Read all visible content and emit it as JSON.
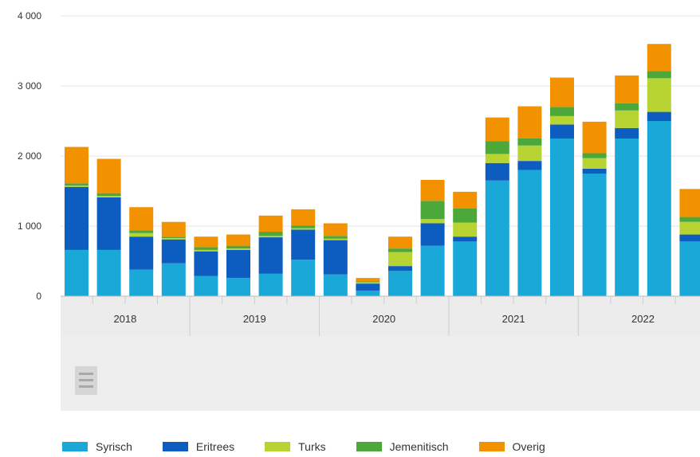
{
  "chart_data": {
    "type": "bar",
    "stacked": true,
    "quarters_per_year": 4,
    "years": [
      "2018",
      "2019",
      "2020",
      "2021",
      "2022"
    ],
    "y_ticks": [
      "0",
      "1 000",
      "2 000",
      "3 000",
      "4 000"
    ],
    "ylim": [
      0,
      4000
    ],
    "grid": true,
    "legend_position": "bottom",
    "series": [
      {
        "name": "Syrisch",
        "color": "#1aa8d8",
        "values": [
          660,
          660,
          380,
          470,
          290,
          260,
          320,
          520,
          310,
          80,
          360,
          720,
          780,
          1650,
          1800,
          2250,
          1750,
          2250,
          2500,
          780
        ]
      },
      {
        "name": "Eritrees",
        "color": "#0d5cbf",
        "values": [
          900,
          750,
          470,
          340,
          350,
          400,
          520,
          430,
          490,
          100,
          70,
          320,
          70,
          250,
          130,
          200,
          70,
          150,
          130,
          100
        ]
      },
      {
        "name": "Turks",
        "color": "#b8d432",
        "values": [
          20,
          20,
          50,
          20,
          20,
          20,
          20,
          20,
          20,
          20,
          200,
          60,
          200,
          130,
          220,
          120,
          150,
          250,
          480,
          180
        ]
      },
      {
        "name": "Jemenitisch",
        "color": "#4da83a",
        "values": [
          30,
          40,
          40,
          20,
          40,
          40,
          60,
          40,
          40,
          10,
          50,
          260,
          200,
          180,
          100,
          130,
          70,
          100,
          100,
          70
        ]
      },
      {
        "name": "Overig",
        "color": "#f39200",
        "values": [
          520,
          490,
          330,
          210,
          150,
          160,
          230,
          230,
          180,
          50,
          170,
          300,
          240,
          340,
          460,
          420,
          450,
          400,
          390,
          400
        ]
      }
    ]
  },
  "menu_icon": "hamburger-menu-icon"
}
